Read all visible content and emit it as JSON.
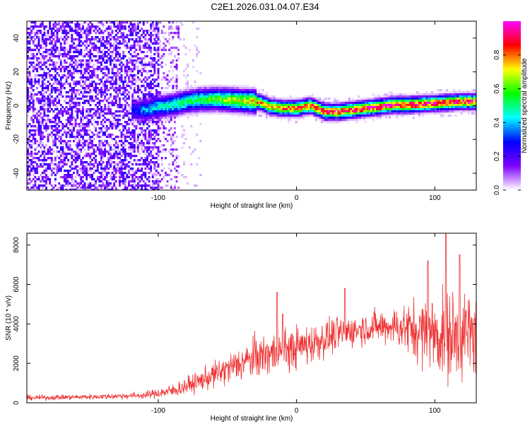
{
  "figure": {
    "title": "C2E1.2026.031.04.07.E34"
  },
  "chart_data": [
    {
      "type": "heatmap",
      "title": "C2E1.2026.031.04.07.E34",
      "xlabel": "Height of straight line (km)",
      "ylabel": "Frequency (Hz)",
      "xlim": [
        -195,
        130
      ],
      "ylim": [
        -50,
        50
      ],
      "x_ticks": [
        -100,
        0,
        100
      ],
      "y_ticks": [
        -40,
        -20,
        0,
        20,
        40
      ],
      "colorbar": {
        "label": "Normalized spectral amplitude",
        "range": [
          0.0,
          1.0
        ],
        "ticks": [
          0.0,
          0.2,
          0.4,
          0.6,
          0.8
        ],
        "tick_labels": [
          "0.0",
          "0.2",
          "0.4",
          "0.6",
          "0.8"
        ],
        "colormap": [
          "#ffffff",
          "#7f00ff",
          "#0000ff",
          "#00ffff",
          "#00ff00",
          "#ffff00",
          "#ff0000",
          "#ff00ff"
        ]
      },
      "ridge_center_hz": {
        "x": [
          -110,
          -100,
          -90,
          -80,
          -70,
          -60,
          -50,
          -40,
          -30,
          -25,
          -20,
          -10,
          0,
          5,
          10,
          20,
          30,
          40,
          50,
          60,
          70,
          80,
          90,
          100,
          110,
          120,
          130
        ],
        "y": [
          -2,
          0,
          1,
          3,
          4,
          4.5,
          4,
          3.5,
          3,
          2,
          0,
          -1,
          -1,
          0,
          0.5,
          -3,
          -3,
          -2,
          -1,
          0,
          1,
          1,
          1.5,
          2,
          2.5,
          3,
          3
        ]
      }
    },
    {
      "type": "line",
      "xlabel": "Height of straight line (km)",
      "ylabel": "SNR (10 * v/v)",
      "xlim": [
        -195,
        130
      ],
      "ylim": [
        0,
        8600
      ],
      "x_ticks": [
        -100,
        0,
        100
      ],
      "y_ticks": [
        0,
        2000,
        4000,
        6000,
        8000
      ],
      "series": [
        {
          "name": "SNR",
          "color": "#ee3333",
          "envelope_x": [
            -195,
            -150,
            -110,
            -90,
            -70,
            -50,
            -30,
            -10,
            10,
            30,
            50,
            70,
            90,
            110,
            130
          ],
          "envelope_mean": [
            250,
            300,
            380,
            600,
            1100,
            1700,
            2300,
            2600,
            3000,
            3500,
            3800,
            3900,
            3600,
            3400,
            3500
          ],
          "envelope_spread": [
            150,
            150,
            200,
            400,
            600,
            900,
            1200,
            1300,
            1200,
            1000,
            900,
            1100,
            2000,
            2700,
            2600
          ],
          "peaks": [
            [
              -14,
              5600
            ],
            [
              -10,
              4500
            ],
            [
              35,
              5800
            ],
            [
              95,
              7200
            ],
            [
              108,
              8600
            ],
            [
              118,
              7500
            ]
          ]
        }
      ]
    }
  ]
}
